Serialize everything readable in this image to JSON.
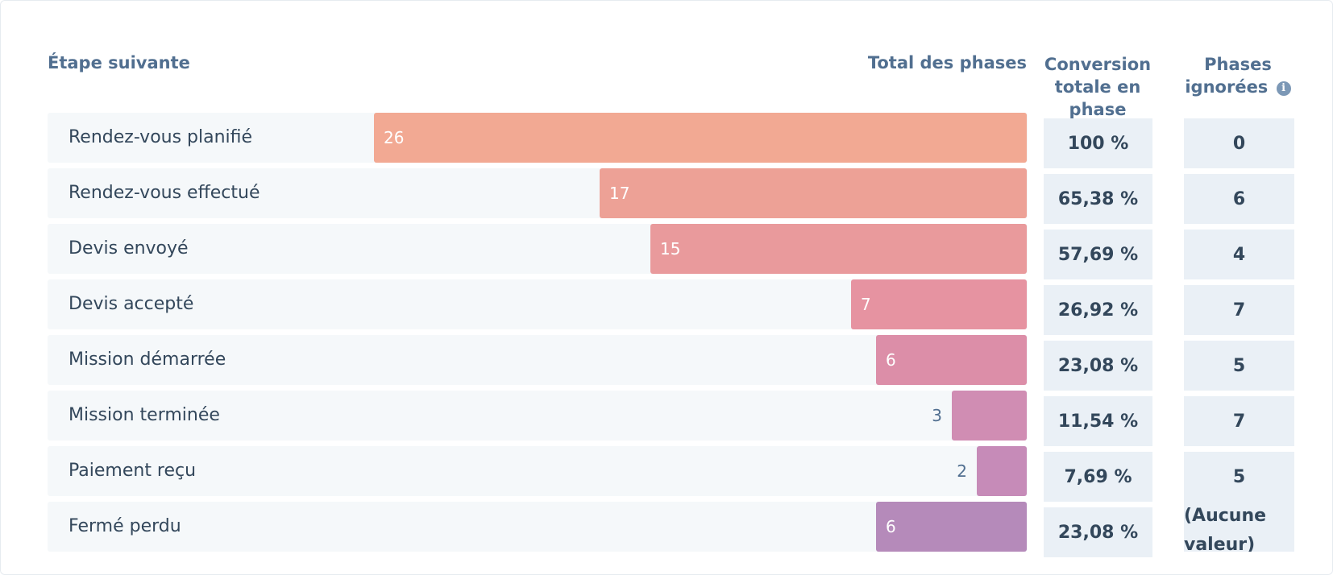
{
  "headers": {
    "stage": "Étape suivante",
    "total": "Total des phases",
    "conversion": "Conversion totale en phase",
    "skipped": "Phases ignorées",
    "skipped_icon": "info-icon"
  },
  "chart_data": {
    "type": "bar",
    "orientation": "horizontal-funnel",
    "title": "",
    "categories": [
      "Rendez-vous planifié",
      "Rendez-vous effectué",
      "Devis envoyé",
      "Devis accepté",
      "Mission démarrée",
      "Mission terminée",
      "Paiement reçu",
      "Fermé perdu"
    ],
    "values": [
      26,
      17,
      15,
      7,
      6,
      3,
      2,
      6
    ],
    "value_labels": [
      "26",
      "17",
      "15",
      "7",
      "6",
      "3",
      "2",
      "6"
    ],
    "conversion": [
      "100 %",
      "65,38 %",
      "57,69 %",
      "26,92 %",
      "23,08 %",
      "11,54 %",
      "7,69 %",
      "23,08 %"
    ],
    "skipped": [
      "0",
      "6",
      "4",
      "7",
      "5",
      "7",
      "5",
      "(Aucune valeur)"
    ],
    "xlim": [
      0,
      26
    ],
    "colors": [
      "#f2a993",
      "#eda196",
      "#e99a9c",
      "#e693a1",
      "#dc8ea8",
      "#d08db3",
      "#c68bb8",
      "#b58aba"
    ]
  }
}
